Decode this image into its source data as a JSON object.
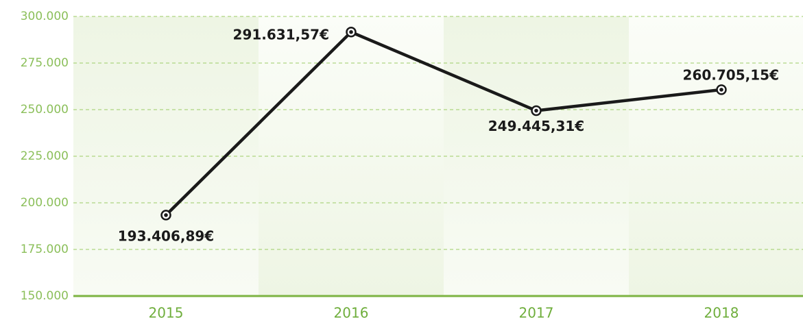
{
  "chart_data": {
    "type": "line",
    "categories": [
      "2015",
      "2016",
      "2017",
      "2018"
    ],
    "series": [
      {
        "color": "#1a1a1a",
        "values": [
          193406.89,
          291631.57,
          249445.31,
          260705.15
        ],
        "value_labels": [
          "193.406,89€",
          "291.631,57€",
          "249.445,31€",
          "260.705,15€"
        ]
      }
    ],
    "ylim": [
      150000,
      300000
    ],
    "yticks": [
      {
        "value": 150000,
        "label": "150.000"
      },
      {
        "value": 175000,
        "label": "175.000"
      },
      {
        "value": 200000,
        "label": "200.000"
      },
      {
        "value": 225000,
        "label": "225.000"
      },
      {
        "value": 250000,
        "label": "250.000"
      },
      {
        "value": 275000,
        "label": "275.000"
      },
      {
        "value": 300000,
        "label": "300.000"
      }
    ],
    "grid": true,
    "grid_color": "#9ccc65",
    "axis_color": "#7cb342"
  }
}
